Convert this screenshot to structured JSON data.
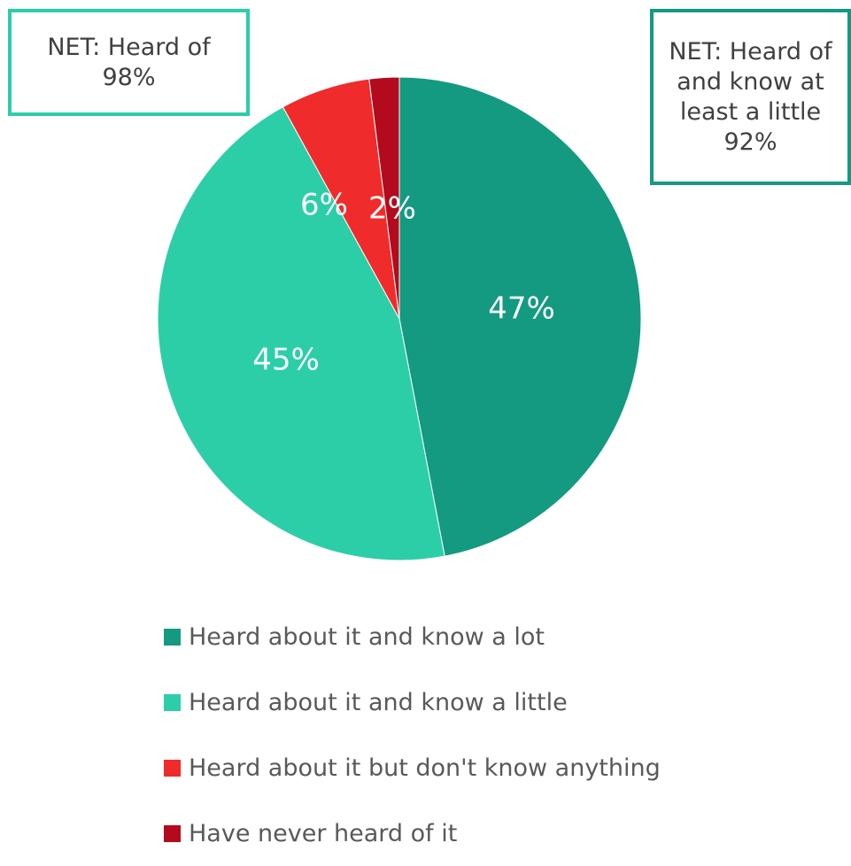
{
  "chart_data": {
    "type": "pie",
    "categories": [
      "Heard about it and know a lot",
      "Heard about it and know a little",
      "Heard about it but don't know anything",
      "Have never heard of it"
    ],
    "values": [
      47,
      45,
      6,
      2
    ],
    "value_labels": [
      "47%",
      "45%",
      "6%",
      "2%"
    ],
    "colors": [
      "#149a80",
      "#2ccea8",
      "#f02b2b",
      "#b30a1e"
    ],
    "start_angle_deg": 0,
    "direction": "clockwise",
    "legend_position": "bottom"
  },
  "annotations": [
    {
      "text": "NET: Heard of 98%",
      "lines": [
        "NET: Heard of",
        "98%"
      ],
      "border_color": "#2ccea8"
    },
    {
      "text": "NET: Heard of and know at least a little 92%",
      "lines": [
        "NET: Heard of",
        "and know at",
        "least a little",
        "92%"
      ],
      "border_color": "#149a80"
    }
  ]
}
